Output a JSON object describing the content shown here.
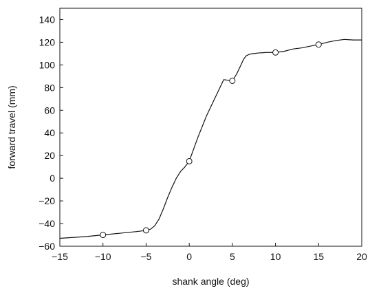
{
  "chart_data": {
    "type": "line",
    "title": "",
    "xlabel": "shank angle (deg)",
    "ylabel": "forward travel (mm)",
    "xlim": [
      -15,
      20
    ],
    "ylim": [
      -60,
      150
    ],
    "xticks": [
      -15,
      -10,
      -5,
      0,
      5,
      10,
      15,
      20
    ],
    "xtick_labels": [
      "−15",
      "−10",
      "−5",
      "0",
      "5",
      "10",
      "15",
      "20"
    ],
    "yticks": [
      -60,
      -40,
      -20,
      0,
      20,
      40,
      60,
      80,
      100,
      120,
      140
    ],
    "ytick_labels": [
      "−60",
      "−40",
      "−20",
      "0",
      "20",
      "40",
      "60",
      "80",
      "100",
      "120",
      "140"
    ],
    "grid": false,
    "series": [
      {
        "kind": "curve",
        "color": "#111111",
        "x": [
          -15,
          -12,
          -10,
          -8,
          -6,
          -5,
          -4.5,
          -4,
          -3.5,
          -3,
          -2.5,
          -2,
          -1.5,
          -1,
          -0.5,
          0,
          1,
          2,
          3,
          4,
          5,
          5.5,
          6,
          6.3,
          6.6,
          7,
          7.5,
          8,
          9,
          10,
          11,
          12,
          13,
          14,
          15,
          16,
          17,
          18,
          19,
          20
        ],
        "y": [
          -53,
          -51.5,
          -50,
          -48.5,
          -47,
          -46,
          -45,
          -42,
          -36,
          -27,
          -17,
          -8,
          0,
          6,
          10,
          15,
          36,
          55,
          71,
          87,
          86,
          92,
          100,
          105,
          108,
          109.5,
          110,
          110.5,
          111,
          111,
          112,
          114,
          115,
          116.5,
          118,
          120,
          121.5,
          122.5,
          122,
          122
        ]
      },
      {
        "kind": "markers",
        "marker": "circle",
        "color": "#111111",
        "x": [
          -10,
          -5,
          0,
          5,
          10,
          15
        ],
        "y": [
          -50,
          -46,
          15,
          86,
          111,
          118
        ]
      }
    ]
  }
}
